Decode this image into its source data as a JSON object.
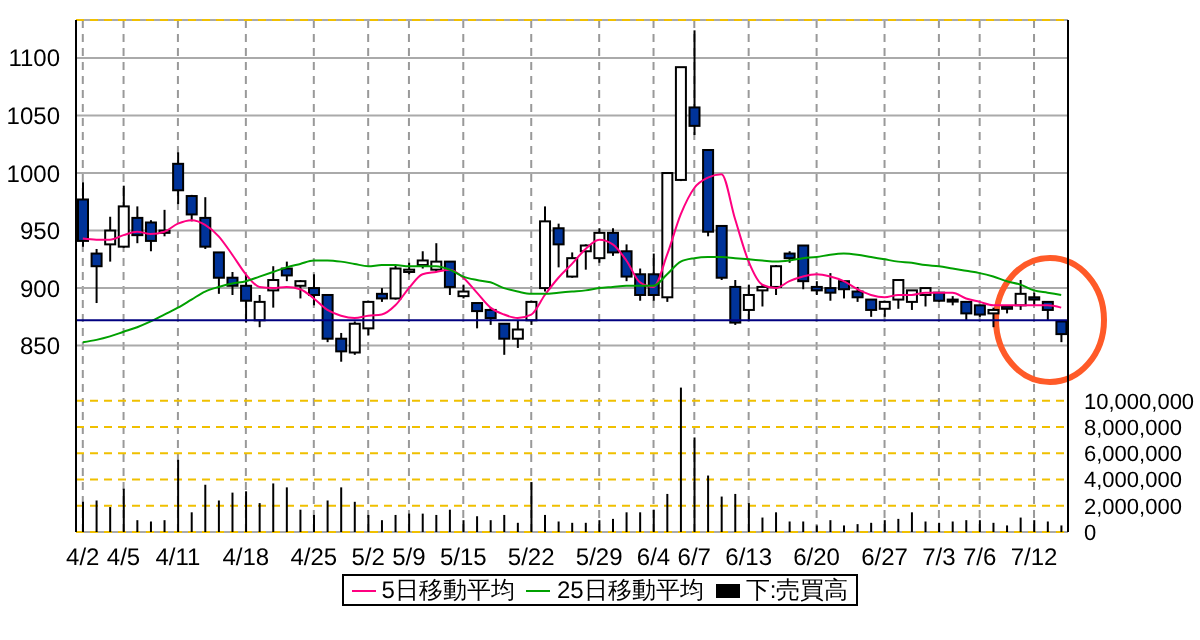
{
  "chart_data": {
    "type": "candlestick",
    "categories": [
      "4/2",
      null,
      null,
      "4/5",
      null,
      null,
      null,
      "4/11",
      null,
      null,
      null,
      null,
      "4/18",
      null,
      null,
      null,
      null,
      "4/25",
      null,
      null,
      null,
      "5/2",
      null,
      null,
      "5/9",
      null,
      null,
      null,
      "5/15",
      null,
      null,
      null,
      null,
      "5/22",
      null,
      null,
      null,
      null,
      "5/29",
      null,
      null,
      null,
      "6/4",
      null,
      null,
      "6/7",
      null,
      null,
      null,
      "6/13",
      null,
      null,
      null,
      null,
      "6/20",
      null,
      null,
      null,
      null,
      "6/27",
      null,
      null,
      null,
      "7/3",
      null,
      null,
      "7/6",
      null,
      null,
      null,
      "7/12",
      null,
      null
    ],
    "series": [
      {
        "colors": [
          "#003399",
          "#003399",
          "#ffffff",
          "#ffffff",
          "#003399",
          "#003399",
          "#ffffff",
          "#003399",
          "#003399",
          "#003399",
          "#003399",
          "#003399",
          "#003399",
          "#ffffff",
          "#ffffff",
          "#003399",
          "#ffffff",
          "#003399",
          "#003399",
          "#003399",
          "#ffffff",
          "#ffffff",
          "#003399",
          "#ffffff",
          "#ffffff",
          "#ffffff",
          "#ffffff",
          "#003399",
          "#ffffff",
          "#003399",
          "#003399",
          "#003399",
          "#ffffff",
          "#ffffff",
          "#ffffff",
          "#003399",
          "#ffffff",
          "#ffffff",
          "#ffffff",
          "#003399",
          "#003399",
          "#003399",
          "#003399",
          "#ffffff",
          "#ffffff",
          "#003399",
          "#003399",
          "#003399",
          "#003399",
          "#ffffff",
          "#ffffff",
          "#ffffff",
          "#003399",
          "#003399",
          "#003399",
          "#003399",
          "#003399",
          "#003399",
          "#003399",
          "#ffffff",
          "#ffffff",
          "#ffffff",
          "#ffffff",
          "#003399",
          "#003399",
          "#003399",
          "#003399",
          "#ffffff",
          "#003399",
          "#ffffff",
          "#003399",
          "#003399",
          "#003399"
        ],
        "ohlc": [
          [
            977,
            992,
            936,
            941
          ],
          [
            930,
            934,
            887,
            919
          ],
          [
            938,
            962,
            923,
            950
          ],
          [
            936,
            989,
            935,
            971
          ],
          [
            961,
            971,
            939,
            946
          ],
          [
            957,
            959,
            932,
            941
          ],
          [
            948,
            968,
            945,
            950
          ],
          [
            1008,
            1018,
            973,
            985
          ],
          [
            980,
            981,
            958,
            964
          ],
          [
            961,
            979,
            934,
            936
          ],
          [
            931,
            931,
            895,
            909
          ],
          [
            909,
            914,
            894,
            902
          ],
          [
            902,
            912,
            870,
            889
          ],
          [
            872,
            894,
            866,
            888
          ],
          [
            898,
            919,
            883,
            907
          ],
          [
            917,
            923,
            906,
            911
          ],
          [
            902,
            907,
            891,
            906
          ],
          [
            900,
            912,
            885,
            894
          ],
          [
            894,
            894,
            853,
            856
          ],
          [
            856,
            861,
            836,
            845
          ],
          [
            844,
            871,
            842,
            869
          ],
          [
            865,
            888,
            859,
            888
          ],
          [
            895,
            900,
            888,
            891
          ],
          [
            891,
            920,
            890,
            917
          ],
          [
            914,
            922,
            912,
            916
          ],
          [
            920,
            932,
            917,
            924
          ],
          [
            916,
            939,
            914,
            923
          ],
          [
            923,
            923,
            894,
            901
          ],
          [
            893,
            903,
            891,
            897
          ],
          [
            887,
            887,
            865,
            880
          ],
          [
            881,
            883,
            868,
            874
          ],
          [
            869,
            869,
            842,
            856
          ],
          [
            856,
            872,
            848,
            864
          ],
          [
            872,
            888,
            868,
            888
          ],
          [
            900,
            971,
            897,
            958
          ],
          [
            952,
            956,
            918,
            938
          ],
          [
            910,
            931,
            909,
            926
          ],
          [
            932,
            938,
            916,
            937
          ],
          [
            926,
            952,
            922,
            948
          ],
          [
            948,
            952,
            928,
            931
          ],
          [
            932,
            938,
            906,
            910
          ],
          [
            912,
            917,
            889,
            894
          ],
          [
            912,
            930,
            889,
            894
          ],
          [
            892,
            1000,
            888,
            1000
          ],
          [
            994,
            1092,
            993,
            1092
          ],
          [
            1057,
            1124,
            1033,
            1041
          ],
          [
            1020,
            1020,
            945,
            949
          ],
          [
            954,
            954,
            907,
            909
          ],
          [
            901,
            907,
            868,
            870
          ],
          [
            881,
            903,
            872,
            894
          ],
          [
            898,
            903,
            884,
            901
          ],
          [
            901,
            920,
            894,
            919
          ],
          [
            930,
            932,
            922,
            926
          ],
          [
            937,
            937,
            899,
            906
          ],
          [
            901,
            906,
            894,
            898
          ],
          [
            900,
            913,
            889,
            896
          ],
          [
            906,
            907,
            891,
            899
          ],
          [
            897,
            901,
            888,
            892
          ],
          [
            890,
            890,
            875,
            881
          ],
          [
            882,
            888,
            875,
            888
          ],
          [
            890,
            907,
            882,
            907
          ],
          [
            888,
            898,
            881,
            898
          ],
          [
            894,
            900,
            884,
            900
          ],
          [
            896,
            896,
            888,
            889
          ],
          [
            890,
            893,
            885,
            889
          ],
          [
            888,
            888,
            872,
            878
          ],
          [
            885,
            885,
            875,
            877
          ],
          [
            878,
            883,
            866,
            881
          ],
          [
            884,
            885,
            878,
            882
          ],
          [
            885,
            907,
            881,
            895
          ],
          [
            892,
            896,
            885,
            890
          ],
          [
            888,
            888,
            872,
            881
          ],
          [
            871,
            871,
            853,
            860
          ]
        ]
      },
      {
        "type": "line",
        "name": "5日移動平均",
        "color": "#ff0080",
        "values": [
          943,
          942,
          942,
          946,
          949,
          947,
          949,
          956,
          959,
          955,
          945,
          929,
          912,
          901,
          900,
          901,
          899,
          891,
          881,
          876,
          874,
          876,
          877,
          885,
          900,
          912,
          914,
          916,
          909,
          896,
          883,
          877,
          874,
          877,
          894,
          909,
          921,
          934,
          942,
          938,
          924,
          905,
          901,
          929,
          964,
          987,
          996,
          999,
          960,
          923,
          903,
          900,
          906,
          910,
          912,
          910,
          906,
          899,
          894,
          892,
          894,
          894,
          896,
          896,
          896,
          891,
          888,
          885,
          885,
          885,
          885,
          885,
          883
        ]
      },
      {
        "type": "line",
        "name": "25日移動平均",
        "color": "#00a000",
        "values": [
          853,
          855,
          858,
          862,
          866,
          871,
          877,
          883,
          890,
          897,
          901,
          904,
          906,
          910,
          914,
          918,
          921,
          924,
          924,
          923,
          921,
          919,
          920,
          920,
          919,
          919,
          919,
          916,
          910,
          907,
          905,
          900,
          897,
          895,
          895,
          896,
          897,
          898,
          900,
          901,
          902,
          902,
          902,
          912,
          923,
          926,
          927,
          927,
          926,
          925,
          924,
          923,
          924,
          926,
          927,
          929,
          930,
          929,
          927,
          925,
          923,
          922,
          920,
          919,
          917,
          915,
          913,
          910,
          906,
          903,
          898,
          896,
          894
        ]
      },
      {
        "type": "bar",
        "name": "下:売買高",
        "color": "#000000",
        "axis": "y2",
        "values": [
          2300000,
          2400000,
          1900000,
          3300000,
          900000,
          800000,
          900000,
          5500000,
          1500000,
          3600000,
          2400000,
          3000000,
          3100000,
          2200000,
          3700000,
          3400000,
          1700000,
          1300000,
          2400000,
          3400000,
          2300000,
          1300000,
          900000,
          1300000,
          1400000,
          1400000,
          1300000,
          1700000,
          900000,
          1200000,
          900000,
          1300000,
          700000,
          3800000,
          1300000,
          800000,
          700000,
          700000,
          900000,
          1000000,
          1500000,
          1500000,
          1700000,
          2900000,
          11000000,
          7200000,
          4300000,
          2700000,
          2900000,
          2200000,
          1100000,
          1500000,
          800000,
          800000,
          500000,
          900000,
          500000,
          600000,
          700000,
          900000,
          1000000,
          1500000,
          800000,
          700000,
          800000,
          900000,
          900000,
          700000,
          500000,
          1100000,
          900000,
          800000,
          500000
        ]
      }
    ],
    "ylim": [
      688,
      1133
    ],
    "yticks": [
      850,
      900,
      950,
      1000,
      1050,
      1100
    ],
    "y2lim": [
      0,
      39000000
    ],
    "y2ticks": [
      0,
      {
        "value": 2000000,
        "label": "2,000,000"
      },
      {
        "value": 4000000,
        "label": "4,000,000"
      },
      {
        "value": 6000000,
        "label": "6,000,000"
      },
      {
        "value": 8000000,
        "label": "8,000,000"
      },
      {
        "value": 10000000,
        "label": "10,000,000"
      }
    ],
    "ref_lines": [
      {
        "axis": "y",
        "value": 872,
        "color": "#000080"
      }
    ],
    "grid": true,
    "legend": "bottom"
  }
}
